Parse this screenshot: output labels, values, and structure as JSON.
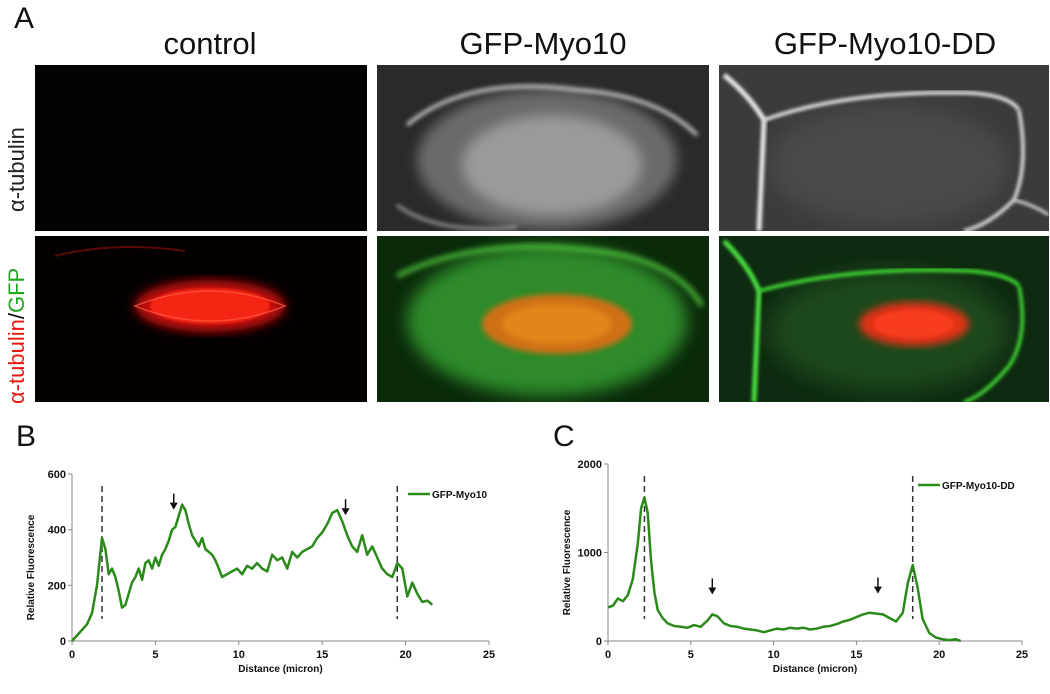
{
  "panel_labels": {
    "a": "A",
    "b": "B",
    "c": "C"
  },
  "columns": [
    {
      "title": "control"
    },
    {
      "title": "GFP-Myo10"
    },
    {
      "title": "GFP-Myo10-DD"
    }
  ],
  "rows": {
    "top": {
      "label": "α-tubulin"
    },
    "bottom": {
      "label_part1": "α-tubulin",
      "label_sep": "/",
      "label_part2": "GFP"
    }
  },
  "colors": {
    "red_channel": "#ff1a10",
    "green_channel": "#28d428",
    "trace_green": "#2a8a1a"
  },
  "chart_data": [
    {
      "type": "line",
      "panel": "B",
      "xlabel": "Distance (micron)",
      "ylabel": "Relative Fluorescence",
      "xlim": [
        0,
        25
      ],
      "ylim": [
        0,
        600
      ],
      "xticks": [
        0,
        5,
        10,
        15,
        20,
        25
      ],
      "yticks": [
        0,
        200,
        400,
        600
      ],
      "grid": false,
      "legend_position": "top-right",
      "dashed_lines_x": [
        1.8,
        19.5
      ],
      "arrows_x": [
        6.1,
        16.4
      ],
      "series": [
        {
          "name": "GFP-Myo10",
          "x": [
            0,
            0.3,
            0.6,
            0.9,
            1.2,
            1.5,
            1.8,
            2.0,
            2.2,
            2.4,
            2.6,
            2.8,
            3.0,
            3.2,
            3.4,
            3.6,
            3.8,
            4.0,
            4.2,
            4.4,
            4.6,
            4.8,
            5.0,
            5.2,
            5.4,
            5.6,
            5.8,
            6.0,
            6.2,
            6.4,
            6.6,
            6.8,
            7.0,
            7.2,
            7.4,
            7.6,
            7.8,
            8.0,
            8.2,
            8.4,
            8.6,
            8.8,
            9.0,
            9.3,
            9.6,
            9.9,
            10.2,
            10.5,
            10.8,
            11.1,
            11.4,
            11.7,
            12.0,
            12.3,
            12.6,
            12.9,
            13.2,
            13.5,
            13.8,
            14.1,
            14.4,
            14.7,
            15.0,
            15.3,
            15.6,
            15.9,
            16.2,
            16.5,
            16.8,
            17.1,
            17.4,
            17.7,
            18.0,
            18.3,
            18.6,
            18.9,
            19.2,
            19.5,
            19.8,
            20.1,
            20.4,
            20.7,
            21.0,
            21.3,
            21.6
          ],
          "y": [
            0,
            20,
            40,
            60,
            100,
            200,
            370,
            330,
            240,
            260,
            230,
            180,
            120,
            130,
            170,
            210,
            230,
            260,
            220,
            280,
            290,
            260,
            300,
            270,
            310,
            330,
            360,
            400,
            410,
            450,
            490,
            470,
            420,
            380,
            360,
            340,
            370,
            330,
            320,
            310,
            290,
            260,
            230,
            240,
            250,
            260,
            240,
            270,
            260,
            280,
            260,
            250,
            310,
            290,
            300,
            260,
            320,
            300,
            320,
            330,
            340,
            370,
            390,
            420,
            460,
            470,
            430,
            380,
            340,
            320,
            380,
            310,
            340,
            300,
            260,
            240,
            230,
            280,
            260,
            160,
            210,
            170,
            140,
            145,
            130
          ]
        }
      ]
    },
    {
      "type": "line",
      "panel": "C",
      "xlabel": "Distance (micron)",
      "ylabel": "Relative Fluorescence",
      "xlim": [
        0,
        25
      ],
      "ylim": [
        0,
        2000
      ],
      "xticks": [
        0,
        5,
        10,
        15,
        20,
        25
      ],
      "yticks": [
        0,
        1000,
        2000
      ],
      "grid": false,
      "legend_position": "top-right",
      "dashed_lines_x": [
        2.2,
        18.4
      ],
      "arrows_x": [
        6.3,
        16.3
      ],
      "series": [
        {
          "name": "GFP-Myo10-DD",
          "x": [
            0,
            0.3,
            0.6,
            0.9,
            1.2,
            1.5,
            1.8,
            2.0,
            2.2,
            2.4,
            2.6,
            2.8,
            3.0,
            3.3,
            3.6,
            4.0,
            4.4,
            4.8,
            5.2,
            5.6,
            6.0,
            6.3,
            6.6,
            7.0,
            7.4,
            7.8,
            8.2,
            8.6,
            9.0,
            9.4,
            9.8,
            10.2,
            10.6,
            11.0,
            11.4,
            11.8,
            12.2,
            12.6,
            13.0,
            13.4,
            13.8,
            14.2,
            14.6,
            15.0,
            15.4,
            15.8,
            16.2,
            16.6,
            17.0,
            17.4,
            17.8,
            18.1,
            18.4,
            18.7,
            19.0,
            19.4,
            19.8,
            20.2,
            20.6,
            21.0,
            21.3
          ],
          "y": [
            380,
            400,
            480,
            450,
            520,
            700,
            1100,
            1500,
            1620,
            1450,
            900,
            550,
            350,
            260,
            200,
            170,
            160,
            150,
            180,
            160,
            230,
            300,
            280,
            200,
            170,
            160,
            140,
            130,
            120,
            100,
            120,
            140,
            130,
            150,
            140,
            150,
            130,
            140,
            160,
            170,
            190,
            220,
            240,
            270,
            300,
            320,
            310,
            300,
            260,
            220,
            320,
            650,
            860,
            600,
            250,
            90,
            40,
            20,
            10,
            20,
            0
          ]
        }
      ]
    }
  ]
}
